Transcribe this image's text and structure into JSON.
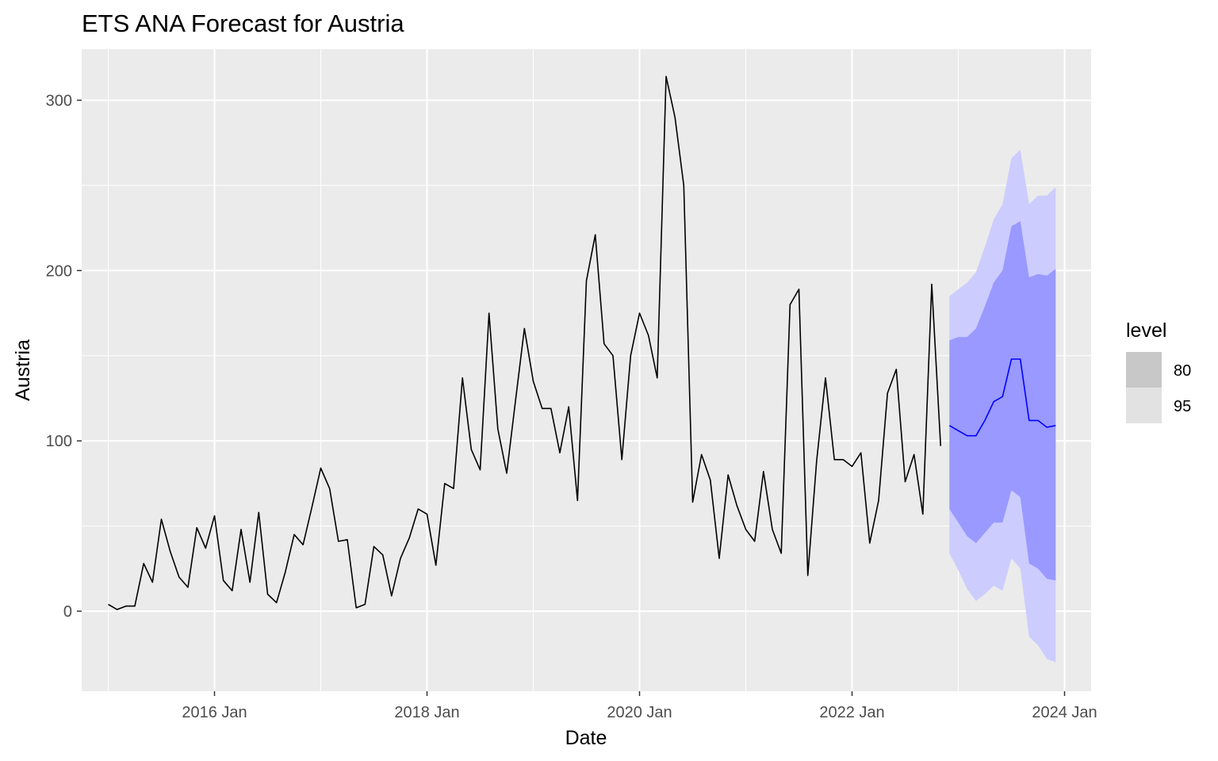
{
  "chart_data": {
    "type": "line",
    "title": "ETS ANA Forecast for Austria",
    "xlabel": "Date",
    "ylabel": "Austria",
    "x_ticks": [
      "2016 Jan",
      "2018 Jan",
      "2020 Jan",
      "2022 Jan",
      "2024 Jan"
    ],
    "y_ticks": [
      "0",
      "100",
      "200",
      "300"
    ],
    "ylim": [
      -47,
      330
    ],
    "xlim": [
      "2014-10",
      "2024-04"
    ],
    "grid": true,
    "background": "#ebebeb",
    "legend": {
      "title": "level",
      "position": "right",
      "items": [
        {
          "label": "80",
          "color": "#c8c8c8"
        },
        {
          "label": "95",
          "color": "#e2e2e2"
        }
      ]
    },
    "series": [
      {
        "color": "#000000",
        "x": [
          "2015-01",
          "2015-02",
          "2015-03",
          "2015-04",
          "2015-05",
          "2015-06",
          "2015-07",
          "2015-08",
          "2015-09",
          "2015-10",
          "2015-11",
          "2015-12",
          "2016-01",
          "2016-02",
          "2016-03",
          "2016-04",
          "2016-05",
          "2016-06",
          "2016-07",
          "2016-08",
          "2016-09",
          "2016-10",
          "2016-11",
          "2016-12",
          "2017-01",
          "2017-02",
          "2017-03",
          "2017-04",
          "2017-05",
          "2017-06",
          "2017-07",
          "2017-08",
          "2017-09",
          "2017-10",
          "2017-11",
          "2017-12",
          "2018-01",
          "2018-02",
          "2018-03",
          "2018-04",
          "2018-05",
          "2018-06",
          "2018-07",
          "2018-08",
          "2018-09",
          "2018-10",
          "2018-11",
          "2018-12",
          "2019-01",
          "2019-02",
          "2019-03",
          "2019-04",
          "2019-05",
          "2019-06",
          "2019-07",
          "2019-08",
          "2019-09",
          "2019-10",
          "2019-11",
          "2019-12",
          "2020-01",
          "2020-02",
          "2020-03",
          "2020-04",
          "2020-05",
          "2020-06",
          "2020-07",
          "2020-08",
          "2020-09",
          "2020-10",
          "2020-11",
          "2020-12",
          "2021-01",
          "2021-02",
          "2021-03",
          "2021-04",
          "2021-05",
          "2021-06",
          "2021-07",
          "2021-08",
          "2021-09",
          "2021-10",
          "2021-11",
          "2021-12",
          "2022-01",
          "2022-02",
          "2022-03",
          "2022-04",
          "2022-05",
          "2022-06",
          "2022-07",
          "2022-08",
          "2022-09",
          "2022-10",
          "2022-11"
        ],
        "values": [
          4,
          1,
          3,
          3,
          28,
          17,
          54,
          35,
          20,
          14,
          49,
          37,
          56,
          18,
          12,
          48,
          17,
          58,
          10,
          5,
          23,
          45,
          39,
          61,
          84,
          72,
          41,
          42,
          2,
          4,
          38,
          33,
          9,
          31,
          43,
          60,
          57,
          27,
          75,
          72,
          137,
          95,
          83,
          175,
          107,
          81,
          124,
          166,
          135,
          119,
          119,
          93,
          120,
          65,
          194,
          221,
          157,
          150,
          89,
          150,
          175,
          162,
          137,
          314,
          290,
          250,
          64,
          92,
          77,
          31,
          80,
          62,
          48,
          41,
          82,
          48,
          34,
          180,
          189,
          21,
          88,
          137,
          89,
          89,
          85,
          93,
          40,
          65,
          128,
          142,
          76,
          92,
          57,
          192,
          97
        ]
      },
      {
        "color": "#0000ff",
        "x": [
          "2022-12",
          "2023-01",
          "2023-02",
          "2023-03",
          "2023-04",
          "2023-05",
          "2023-06",
          "2023-07",
          "2023-08",
          "2023-09",
          "2023-10",
          "2023-11",
          "2023-12"
        ],
        "values": [
          109,
          106,
          103,
          103,
          112,
          123,
          126,
          148,
          148,
          112,
          112,
          108,
          109
        ],
        "lo80": [
          60,
          52,
          44,
          40,
          46,
          52,
          52,
          71,
          67,
          28,
          25,
          19,
          18
        ],
        "hi80": [
          159,
          161,
          161,
          166,
          179,
          193,
          200,
          226,
          229,
          196,
          198,
          197,
          201
        ],
        "lo95": [
          34,
          24,
          13,
          6,
          10,
          15,
          12,
          31,
          25,
          -15,
          -20,
          -28,
          -30
        ],
        "hi95": [
          185,
          189,
          193,
          199,
          214,
          230,
          239,
          266,
          271,
          239,
          244,
          244,
          249
        ]
      }
    ]
  }
}
